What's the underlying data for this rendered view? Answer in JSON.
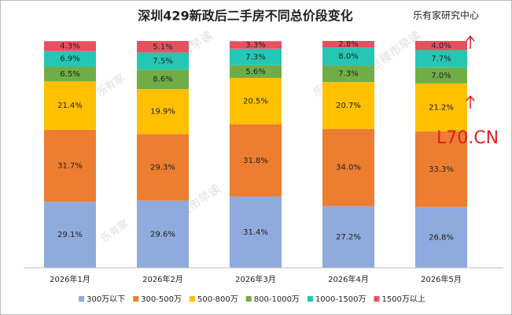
{
  "chart_data": {
    "type": "stacked_bar",
    "title": "深圳429新政后二手房不同总价段变化",
    "source": "乐有家研究中心",
    "watermark": "L70.CN",
    "watermark_logo": "乐有家",
    "watermark_text": "每日楼市早读",
    "categories": [
      "2026年1月",
      "2026年2月",
      "2026年3月",
      "2026年4月",
      "2026年5月"
    ],
    "series": [
      {
        "name": "300万以下",
        "color": "#8faadc",
        "values": [
          29.1,
          29.6,
          31.4,
          27.2,
          26.8
        ],
        "value_labels": [
          "29.1%",
          "29.6%",
          "31.4%",
          "27.2%",
          "26.8%"
        ]
      },
      {
        "name": "300-500万",
        "color": "#ed7d31",
        "values": [
          31.7,
          29.3,
          31.8,
          34.0,
          33.3
        ],
        "value_labels": [
          "31.7%",
          "29.3%",
          "31.8%",
          "34.0%",
          "33.3%"
        ]
      },
      {
        "name": "500-800万",
        "color": "#ffc000",
        "values": [
          21.4,
          19.9,
          20.5,
          20.7,
          21.2
        ],
        "value_labels": [
          "21.4%",
          "19.9%",
          "20.5%",
          "20.7%",
          "21.2%"
        ]
      },
      {
        "name": "800-1000万",
        "color": "#70ad47",
        "values": [
          6.5,
          8.6,
          5.6,
          7.3,
          7.0
        ],
        "value_labels": [
          "6.5%",
          "8.6%",
          "5.6%",
          "7.3%",
          "7.0%"
        ]
      },
      {
        "name": "1000-1500万",
        "color": "#26c6b4",
        "values": [
          6.9,
          7.5,
          7.3,
          8.0,
          7.7
        ],
        "value_labels": [
          "6.9%",
          "7.5%",
          "7.3%",
          "8.0%",
          "7.7%"
        ]
      },
      {
        "name": "1500万以上",
        "color": "#e8505e",
        "values": [
          4.3,
          5.1,
          3.3,
          2.8,
          4.0
        ],
        "value_labels": [
          "4.3%",
          "5.1%",
          "3.3%",
          "2.8%",
          "4.0%"
        ]
      }
    ]
  }
}
